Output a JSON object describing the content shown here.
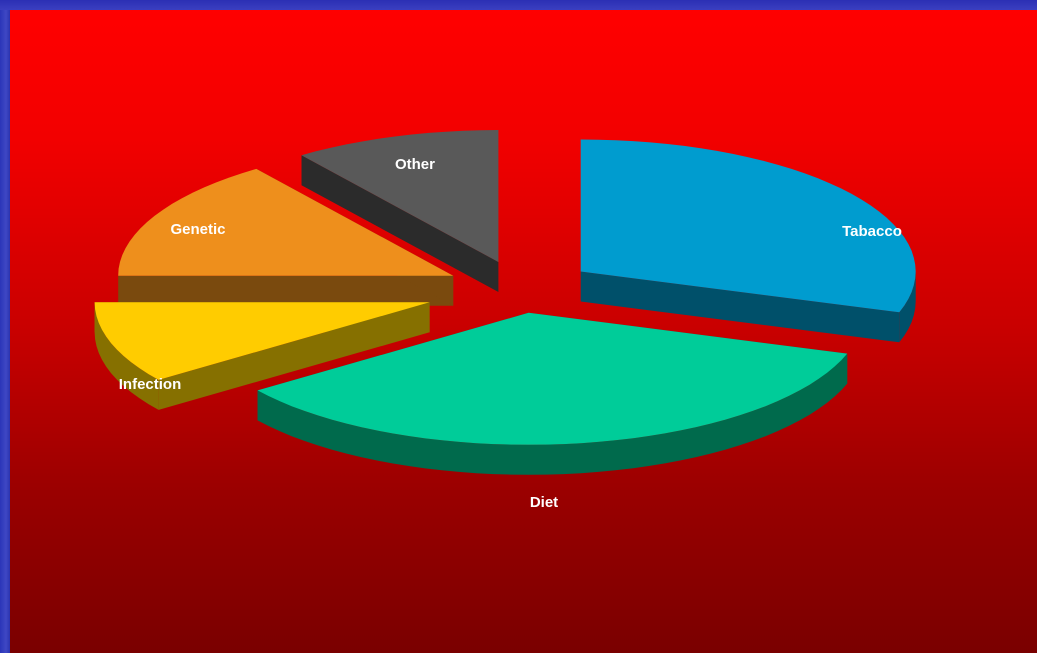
{
  "chart_data": {
    "type": "pie",
    "title": "",
    "style": "3d-exploded",
    "slices": [
      {
        "label": "Tabacco",
        "value": 30,
        "color": "#009ccf",
        "side": "#00506a"
      },
      {
        "label": "Diet",
        "value": 35,
        "color": "#00cc99",
        "side": "#006a4c"
      },
      {
        "label": "Infection",
        "value": 10,
        "color": "#ffcc00",
        "side": "#867000"
      },
      {
        "label": "Genetic",
        "value": 15,
        "color": "#ee8f1c",
        "side": "#7a4a0e"
      },
      {
        "label": "Other",
        "value": 10,
        "color": "#595959",
        "side": "#2b2b2b"
      }
    ]
  }
}
